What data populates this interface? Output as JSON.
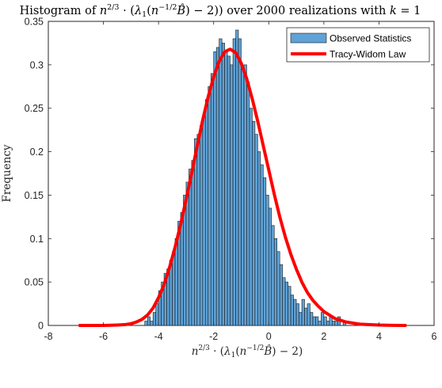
{
  "chart_data": {
    "type": "bar",
    "title": "Histogram of n^{2/3} · (λ₁(n^{−1/2}B̂) − 2)) over 2000 realizations with k = 1",
    "xlabel": "n^{2/3} · (λ₁(n^{−1/2}B̂) − 2)",
    "ylabel": "Frequency",
    "xlim": [
      -8,
      6
    ],
    "ylim": [
      0,
      0.35
    ],
    "xticks": [
      -8,
      -6,
      -4,
      -2,
      0,
      2,
      4,
      6
    ],
    "yticks": [
      0,
      0.05,
      0.1,
      0.15,
      0.2,
      0.25,
      0.3,
      0.35
    ],
    "xtick_labels": [
      "-8",
      "-6",
      "-4",
      "-2",
      "0",
      "2",
      "4",
      "6"
    ],
    "ytick_labels": [
      "0",
      "0.05",
      "0.1",
      "0.15",
      "0.2",
      "0.25",
      "0.3",
      "0.35"
    ],
    "grid": false,
    "legend_position": "top-right",
    "histogram": {
      "name": "Observed Statistics",
      "color": "#5fa2d6",
      "bin_edges": [
        -4.6,
        -4.5,
        -4.4,
        -4.3,
        -4.2,
        -4.1,
        -4.0,
        -3.9,
        -3.8,
        -3.7,
        -3.6,
        -3.5,
        -3.4,
        -3.3,
        -3.2,
        -3.1,
        -3.0,
        -2.9,
        -2.8,
        -2.7,
        -2.6,
        -2.5,
        -2.4,
        -2.3,
        -2.2,
        -2.1,
        -2.0,
        -1.9,
        -1.8,
        -1.7,
        -1.6,
        -1.5,
        -1.4,
        -1.3,
        -1.2,
        -1.1,
        -1.0,
        -0.9,
        -0.8,
        -0.7,
        -0.6,
        -0.5,
        -0.4,
        -0.3,
        -0.2,
        -0.1,
        0.0,
        0.1,
        0.2,
        0.3,
        0.4,
        0.5,
        0.6,
        0.7,
        0.8,
        0.9,
        1.0,
        1.1,
        1.2,
        1.3,
        1.4,
        1.5,
        1.6,
        1.7,
        1.8,
        1.9,
        2.0,
        2.1,
        2.2,
        2.3,
        2.4,
        2.5,
        2.6,
        2.7,
        2.8
      ],
      "values": [
        0.0,
        0.005,
        0.01,
        0.005,
        0.015,
        0.025,
        0.04,
        0.05,
        0.06,
        0.065,
        0.075,
        0.085,
        0.1,
        0.12,
        0.13,
        0.15,
        0.165,
        0.18,
        0.19,
        0.215,
        0.22,
        0.23,
        0.24,
        0.26,
        0.275,
        0.29,
        0.315,
        0.32,
        0.33,
        0.325,
        0.315,
        0.31,
        0.3,
        0.33,
        0.34,
        0.33,
        0.295,
        0.3,
        0.28,
        0.25,
        0.235,
        0.22,
        0.2,
        0.185,
        0.17,
        0.15,
        0.135,
        0.115,
        0.1,
        0.085,
        0.07,
        0.055,
        0.05,
        0.045,
        0.035,
        0.03,
        0.025,
        0.015,
        0.03,
        0.02,
        0.025,
        0.015,
        0.01,
        0.01,
        0.005,
        0.015,
        0.01,
        0.005,
        0.01,
        0.005,
        0.005,
        0.01,
        0.0,
        0.005
      ]
    },
    "curve": {
      "name": "Tracy-Widom Law",
      "color": "#ff0000",
      "x": [
        -6.9,
        -6.0,
        -5.5,
        -5.2,
        -5.0,
        -4.8,
        -4.6,
        -4.4,
        -4.2,
        -4.0,
        -3.8,
        -3.6,
        -3.4,
        -3.2,
        -3.0,
        -2.8,
        -2.6,
        -2.4,
        -2.2,
        -2.0,
        -1.8,
        -1.6,
        -1.4,
        -1.2,
        -1.0,
        -0.8,
        -0.6,
        -0.4,
        -0.2,
        0.0,
        0.2,
        0.4,
        0.6,
        0.8,
        1.0,
        1.2,
        1.4,
        1.6,
        1.8,
        2.0,
        2.2,
        2.4,
        2.6,
        2.8,
        3.0,
        3.3,
        3.6,
        4.0,
        4.5,
        5.0
      ],
      "y": [
        0.0,
        0.0,
        0.0005,
        0.001,
        0.002,
        0.004,
        0.007,
        0.012,
        0.02,
        0.032,
        0.047,
        0.067,
        0.09,
        0.116,
        0.145,
        0.175,
        0.206,
        0.236,
        0.263,
        0.286,
        0.304,
        0.315,
        0.318,
        0.314,
        0.302,
        0.284,
        0.261,
        0.235,
        0.207,
        0.179,
        0.151,
        0.125,
        0.102,
        0.082,
        0.065,
        0.05,
        0.038,
        0.029,
        0.022,
        0.016,
        0.012,
        0.008,
        0.006,
        0.004,
        0.003,
        0.0015,
        0.001,
        0.0004,
        0.0001,
        0.0
      ]
    }
  },
  "legend": {
    "items": [
      {
        "label": "Observed Statistics",
        "color": "#5fa2d6",
        "kind": "patch"
      },
      {
        "label": "Tracy-Widom Law",
        "color": "#ff0000",
        "kind": "line"
      }
    ]
  }
}
